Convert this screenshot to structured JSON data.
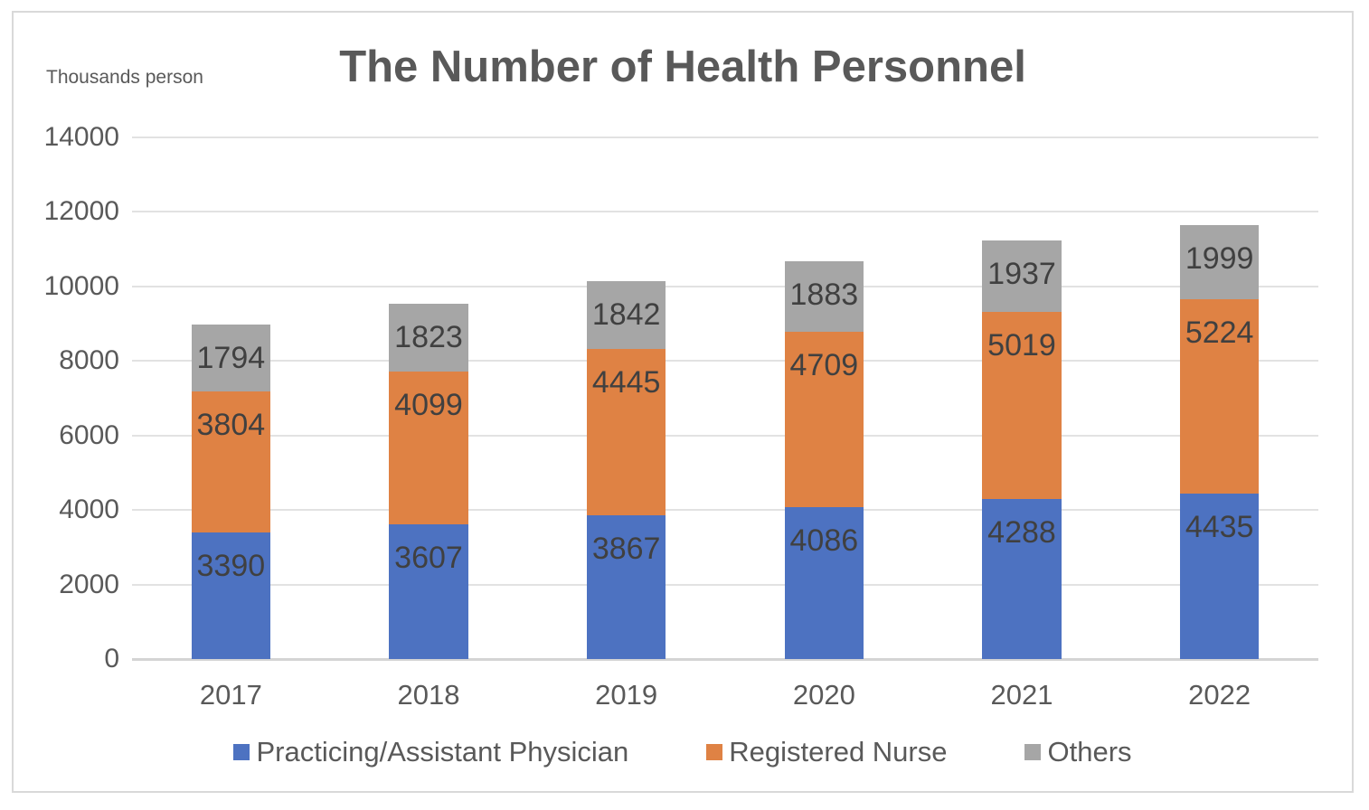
{
  "title": "The Number of Health Personnel",
  "units_label": "Thousands person",
  "colors": {
    "physician": "#4d72c1",
    "nurse": "#df8244",
    "others": "#a6a6a6",
    "title_text": "#595959",
    "axis_text": "#595959",
    "data_label_text": "#404040",
    "gridline": "#e2e2e2",
    "axis_line": "#d4d4d4",
    "frame_border": "#d9d9d9"
  },
  "chart_data": {
    "type": "bar",
    "stacked": true,
    "title": "The Number of Health Personnel",
    "ylabel": "Thousands person",
    "categories": [
      "2017",
      "2018",
      "2019",
      "2020",
      "2021",
      "2022"
    ],
    "series": [
      {
        "name": "Practicing/Assistant Physician",
        "color_key": "physician",
        "values": [
          3390,
          3607,
          3867,
          4086,
          4288,
          4435
        ]
      },
      {
        "name": "Registered Nurse",
        "color_key": "nurse",
        "values": [
          3804,
          4099,
          4445,
          4709,
          5019,
          5224
        ]
      },
      {
        "name": "Others",
        "color_key": "others",
        "values": [
          1794,
          1823,
          1842,
          1883,
          1937,
          1999
        ]
      }
    ],
    "ylim": [
      0,
      14000
    ],
    "yticks": [
      0,
      2000,
      4000,
      6000,
      8000,
      10000,
      12000,
      14000
    ],
    "grid": true,
    "data_labels": true,
    "legend_position": "bottom",
    "bar_gap_ratio": 0.4
  }
}
